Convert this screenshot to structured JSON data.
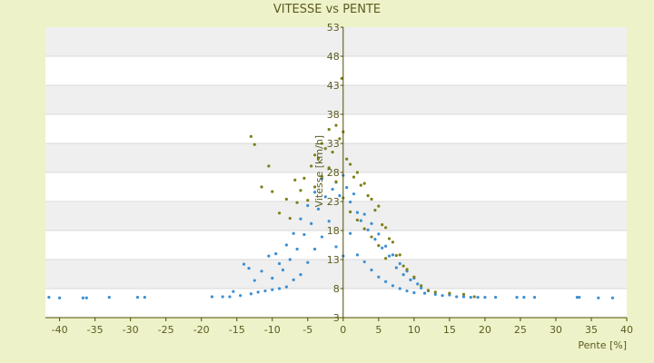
{
  "colors": {
    "page_background": "#eef2c9",
    "plot_background": "#ffffff",
    "band": "#efefef",
    "axis": "#4d4d00",
    "text": "#5b5b1f",
    "series_up": "#7f7f1a",
    "series_down": "#3a8fd4"
  },
  "chart_data": {
    "type": "scatter",
    "title": "VITESSE vs PENTE",
    "xlabel": "Pente [%]",
    "ylabel": "Vitesse [km/h]",
    "xlim": [
      -42,
      40
    ],
    "ylim": [
      3,
      53
    ],
    "x_ticks": [
      -40,
      -35,
      -30,
      -25,
      -20,
      -15,
      -10,
      -5,
      0,
      5,
      10,
      15,
      20,
      25,
      30,
      35,
      40
    ],
    "y_ticks": [
      3,
      8,
      13,
      18,
      23,
      28,
      33,
      38,
      43,
      48,
      53
    ],
    "grid": "horizontal alternating bands",
    "series": [
      {
        "color_key": "series_down",
        "marker": "dot",
        "points": [
          [
            -41.5,
            6.5
          ],
          [
            -40,
            6.4
          ],
          [
            -36.7,
            6.4
          ],
          [
            -36.2,
            6.4
          ],
          [
            -33,
            6.5
          ],
          [
            -29,
            6.5
          ],
          [
            -28,
            6.5
          ],
          [
            -18.5,
            6.6
          ],
          [
            -17,
            6.6
          ],
          [
            -16,
            6.6
          ],
          [
            -15.5,
            7.5
          ],
          [
            -14.5,
            6.8
          ],
          [
            -14,
            12.2
          ],
          [
            -13.3,
            11.5
          ],
          [
            -13,
            7.1
          ],
          [
            -12.5,
            9.4
          ],
          [
            -12,
            7.4
          ],
          [
            -11.5,
            11.0
          ],
          [
            -11,
            7.6
          ],
          [
            -10.5,
            13.6
          ],
          [
            -10,
            7.8
          ],
          [
            -10,
            9.8
          ],
          [
            -9.5,
            14.0
          ],
          [
            -9,
            12.3
          ],
          [
            -9,
            8.0
          ],
          [
            -8.5,
            11.2
          ],
          [
            -8,
            15.5
          ],
          [
            -8,
            8.3
          ],
          [
            -7.5,
            13.0
          ],
          [
            -7,
            17.5
          ],
          [
            -7,
            9.5
          ],
          [
            -6.5,
            14.8
          ],
          [
            -6,
            20.0
          ],
          [
            -6,
            10.4
          ],
          [
            -5.5,
            17.3
          ],
          [
            -5,
            22.3
          ],
          [
            -5,
            12.5
          ],
          [
            -4.5,
            19.2
          ],
          [
            -4,
            24.6
          ],
          [
            -4,
            14.8
          ],
          [
            -3.5,
            21.7
          ],
          [
            -3,
            26.9
          ],
          [
            -3,
            16.9
          ],
          [
            -2.5,
            23.8
          ],
          [
            -2,
            28.7
          ],
          [
            -2,
            19.6
          ],
          [
            -1.5,
            25.1
          ],
          [
            -1,
            26.3
          ],
          [
            -1,
            15.2
          ],
          [
            -0.5,
            24.0
          ],
          [
            0,
            27.5
          ],
          [
            0,
            13.6
          ],
          [
            0.5,
            25.4
          ],
          [
            1,
            22.9
          ],
          [
            1,
            17.5
          ],
          [
            1.5,
            24.3
          ],
          [
            2,
            21.1
          ],
          [
            2,
            13.8
          ],
          [
            2.5,
            19.7
          ],
          [
            3,
            20.8
          ],
          [
            3,
            12.6
          ],
          [
            3.5,
            18.1
          ],
          [
            4,
            19.2
          ],
          [
            4,
            11.2
          ],
          [
            4.5,
            16.5
          ],
          [
            5,
            17.4
          ],
          [
            5,
            10.0
          ],
          [
            5.5,
            15.0
          ],
          [
            6,
            15.3
          ],
          [
            6,
            9.2
          ],
          [
            6.5,
            13.6
          ],
          [
            7,
            13.8
          ],
          [
            7,
            8.5
          ],
          [
            7.5,
            11.6
          ],
          [
            8,
            12.3
          ],
          [
            8,
            8.0
          ],
          [
            8.5,
            10.4
          ],
          [
            9,
            11.0
          ],
          [
            9,
            7.6
          ],
          [
            9.5,
            9.5
          ],
          [
            10,
            9.8
          ],
          [
            10,
            7.3
          ],
          [
            10.5,
            8.8
          ],
          [
            11,
            8.1
          ],
          [
            11.5,
            7.2
          ],
          [
            12,
            7.6
          ],
          [
            13,
            7.0
          ],
          [
            14,
            6.8
          ],
          [
            15,
            6.9
          ],
          [
            16,
            6.6
          ],
          [
            17,
            6.6
          ],
          [
            18,
            6.5
          ],
          [
            19,
            6.5
          ],
          [
            20,
            6.5
          ],
          [
            21.5,
            6.5
          ],
          [
            24.5,
            6.5
          ],
          [
            25.5,
            6.5
          ],
          [
            27,
            6.5
          ],
          [
            33,
            6.5
          ],
          [
            33.3,
            6.5
          ],
          [
            36,
            6.4
          ],
          [
            38,
            6.4
          ]
        ]
      },
      {
        "color_key": "series_up",
        "marker": "dot",
        "points": [
          [
            -13,
            34.2
          ],
          [
            -12.5,
            32.8
          ],
          [
            -10.5,
            29.1
          ],
          [
            -11.5,
            25.5
          ],
          [
            -10,
            24.7
          ],
          [
            -9,
            21.0
          ],
          [
            -8,
            23.4
          ],
          [
            -7.5,
            20.1
          ],
          [
            -6.8,
            26.7
          ],
          [
            -6.5,
            22.8
          ],
          [
            -6,
            24.9
          ],
          [
            -5.5,
            27.0
          ],
          [
            -5,
            23.2
          ],
          [
            -4.5,
            29.1
          ],
          [
            -4,
            31.0
          ],
          [
            -4,
            25.5
          ],
          [
            -3.5,
            30.4
          ],
          [
            -3,
            33.0
          ],
          [
            -3,
            27.3
          ],
          [
            -2.5,
            32.1
          ],
          [
            -2,
            35.4
          ],
          [
            -2,
            28.8
          ],
          [
            -1.5,
            31.5
          ],
          [
            -1,
            36.1
          ],
          [
            -1,
            26.4
          ],
          [
            -0.5,
            33.8
          ],
          [
            -0.2,
            44.2
          ],
          [
            0,
            35.0
          ],
          [
            0,
            23.6
          ],
          [
            0.5,
            30.3
          ],
          [
            1,
            29.4
          ],
          [
            1,
            21.2
          ],
          [
            1.5,
            27.2
          ],
          [
            2,
            28.0
          ],
          [
            2,
            19.8
          ],
          [
            2.5,
            25.8
          ],
          [
            3,
            26.1
          ],
          [
            3,
            18.3
          ],
          [
            3.5,
            24.0
          ],
          [
            4,
            23.4
          ],
          [
            4,
            16.9
          ],
          [
            4.5,
            21.5
          ],
          [
            5,
            22.2
          ],
          [
            5,
            15.4
          ],
          [
            5.5,
            19.0
          ],
          [
            6,
            18.5
          ],
          [
            6,
            13.2
          ],
          [
            6.5,
            16.6
          ],
          [
            7,
            16.0
          ],
          [
            7.5,
            13.7
          ],
          [
            8,
            13.8
          ],
          [
            8.5,
            11.9
          ],
          [
            9,
            11.3
          ],
          [
            10,
            10.0
          ],
          [
            11,
            8.5
          ],
          [
            12,
            7.7
          ],
          [
            13,
            7.4
          ],
          [
            15,
            7.2
          ],
          [
            17,
            7.0
          ],
          [
            18.5,
            6.6
          ]
        ]
      }
    ]
  }
}
